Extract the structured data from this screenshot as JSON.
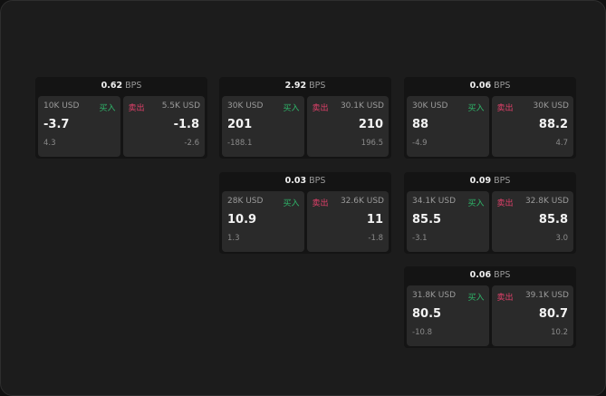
{
  "unit": "BPS",
  "buy_label": "买入",
  "sell_label": "卖出",
  "colors": {
    "buy": "#2fb66a",
    "sell": "#e0406a"
  },
  "cards": [
    {
      "spread": "0.62",
      "bid": {
        "size": "10K USD",
        "price": "-3.7",
        "change": "4.3"
      },
      "ask": {
        "size": "5.5K USD",
        "price": "-1.8",
        "change": "-2.6"
      }
    },
    {
      "spread": "2.92",
      "bid": {
        "size": "30K USD",
        "price": "201",
        "change": "-188.1"
      },
      "ask": {
        "size": "30.1K USD",
        "price": "210",
        "change": "196.5"
      }
    },
    {
      "spread": "0.06",
      "bid": {
        "size": "30K USD",
        "price": "88",
        "change": "-4.9"
      },
      "ask": {
        "size": "30K USD",
        "price": "88.2",
        "change": "4.7"
      }
    },
    {
      "spread": "0.03",
      "bid": {
        "size": "28K USD",
        "price": "10.9",
        "change": "1.3"
      },
      "ask": {
        "size": "32.6K USD",
        "price": "11",
        "change": "-1.8"
      }
    },
    {
      "spread": "0.09",
      "bid": {
        "size": "34.1K USD",
        "price": "85.5",
        "change": "-3.1"
      },
      "ask": {
        "size": "32.8K USD",
        "price": "85.8",
        "change": "3.0"
      }
    },
    {
      "spread": "0.06",
      "bid": {
        "size": "31.8K USD",
        "price": "80.5",
        "change": "-10.8"
      },
      "ask": {
        "size": "39.1K USD",
        "price": "80.7",
        "change": "10.2"
      }
    }
  ]
}
